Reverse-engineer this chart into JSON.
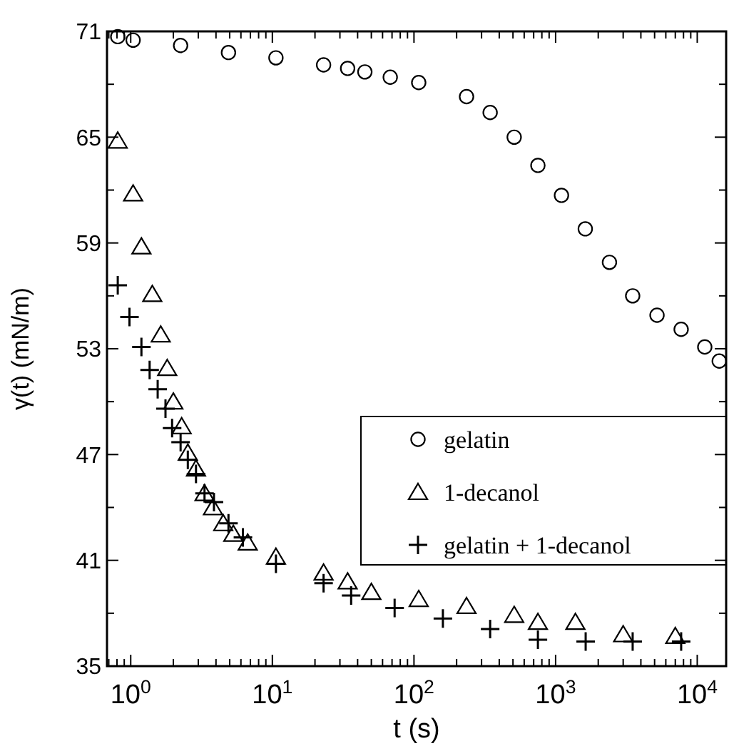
{
  "chart_data": {
    "type": "scatter",
    "xlabel": "t (s)",
    "ylabel": "γ(t) (mN/m)",
    "log": "x",
    "legend": "bottom right",
    "grid": false,
    "xlim": [
      0.68,
      16000
    ],
    "ylim": [
      35,
      71
    ],
    "xticks": [
      {
        "value": 0.7,
        "label": null
      },
      {
        "value": 0.8,
        "label": null
      },
      {
        "value": 0.9,
        "label": null
      },
      {
        "value": 1,
        "label": "10$^{0}$"
      },
      {
        "value": 2,
        "label": null
      },
      {
        "value": 3,
        "label": null
      },
      {
        "value": 4,
        "label": null
      },
      {
        "value": 5,
        "label": null
      },
      {
        "value": 6,
        "label": null
      },
      {
        "value": 7,
        "label": null
      },
      {
        "value": 8,
        "label": null
      },
      {
        "value": 9,
        "label": null
      },
      {
        "value": 10,
        "label": "10$^{1}$"
      },
      {
        "value": 20,
        "label": null
      },
      {
        "value": 30,
        "label": null
      },
      {
        "value": 40,
        "label": null
      },
      {
        "value": 50,
        "label": null
      },
      {
        "value": 60,
        "label": null
      },
      {
        "value": 70,
        "label": null
      },
      {
        "value": 80,
        "label": null
      },
      {
        "value": 90,
        "label": null
      },
      {
        "value": 100,
        "label": "10$^{2}$"
      },
      {
        "value": 200,
        "label": null
      },
      {
        "value": 300,
        "label": null
      },
      {
        "value": 400,
        "label": null
      },
      {
        "value": 500,
        "label": null
      },
      {
        "value": 600,
        "label": null
      },
      {
        "value": 700,
        "label": null
      },
      {
        "value": 800,
        "label": null
      },
      {
        "value": 900,
        "label": null
      },
      {
        "value": 1000,
        "label": "10$^{3}$"
      },
      {
        "value": 2000,
        "label": null
      },
      {
        "value": 3000,
        "label": null
      },
      {
        "value": 4000,
        "label": null
      },
      {
        "value": 5000,
        "label": null
      },
      {
        "value": 6000,
        "label": null
      },
      {
        "value": 7000,
        "label": null
      },
      {
        "value": 8000,
        "label": null
      },
      {
        "value": 9000,
        "label": null
      },
      {
        "value": 10000,
        "label": "10$^{4}$"
      }
    ],
    "yticks": [
      35,
      {
        "value": 38,
        "label": null
      },
      41,
      {
        "value": 44,
        "label": null
      },
      47,
      {
        "value": 50,
        "label": null
      },
      53,
      {
        "value": 56,
        "label": null
      },
      59,
      {
        "value": 62,
        "label": null
      },
      65,
      {
        "value": 68,
        "label": null
      },
      71
    ],
    "series": [
      {
        "name": "gelatin",
        "color": "#000000",
        "marker": "circle",
        "x": [
          0.81,
          1.04,
          2.25,
          4.9,
          10.6,
          23,
          34,
          45,
          68,
          108,
          235,
          345,
          510,
          750,
          1100,
          1620,
          2400,
          3500,
          5200,
          7700,
          11300,
          14300
        ],
        "values": [
          70.7,
          70.5,
          70.2,
          69.8,
          69.5,
          69.1,
          68.9,
          68.7,
          68.4,
          68.1,
          67.3,
          66.4,
          65.0,
          63.4,
          61.7,
          59.8,
          57.9,
          56.0,
          54.9,
          54.1,
          53.1,
          52.3
        ]
      },
      {
        "name": "1-decanol",
        "color": "#000000",
        "marker": "triangle",
        "x": [
          0.81,
          1.04,
          1.19,
          1.42,
          1.63,
          1.81,
          2.0,
          2.29,
          2.53,
          2.89,
          3.32,
          3.81,
          4.5,
          5.3,
          6.7,
          10.6,
          23,
          34,
          50,
          108,
          235,
          510,
          750,
          1380,
          3000,
          7000
        ],
        "values": [
          64.8,
          61.8,
          58.8,
          56.1,
          53.8,
          51.9,
          50.0,
          48.6,
          47.1,
          46.2,
          44.8,
          44.0,
          43.1,
          42.5,
          42.0,
          41.2,
          40.3,
          39.8,
          39.2,
          38.8,
          38.4,
          37.9,
          37.5,
          37.5,
          36.8,
          36.7
        ]
      },
      {
        "name": "gelatin + 1-decanol",
        "color": "#000000",
        "marker": "cross",
        "x": [
          0.81,
          0.98,
          1.19,
          1.36,
          1.55,
          1.76,
          1.96,
          2.25,
          2.53,
          2.89,
          3.32,
          3.87,
          4.9,
          6.2,
          10.6,
          23,
          36,
          73,
          160,
          345,
          750,
          1630,
          3500,
          7700
        ],
        "values": [
          56.6,
          54.8,
          53.1,
          51.8,
          50.7,
          49.6,
          48.5,
          47.7,
          46.7,
          45.9,
          44.8,
          44.3,
          43.1,
          42.3,
          40.8,
          39.7,
          39.0,
          38.3,
          37.7,
          37.1,
          36.5,
          36.4,
          36.4,
          36.4
        ]
      }
    ]
  }
}
